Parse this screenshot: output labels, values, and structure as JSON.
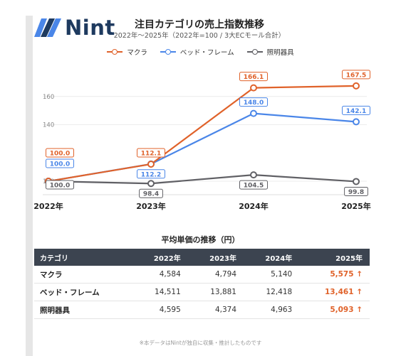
{
  "brand": {
    "name": "Nint"
  },
  "chart_data": {
    "type": "line",
    "title": "注目カテゴリの売上指数推移",
    "subtitle": "2022年～2025年（2022年=100 / 3大ECモール合計）",
    "categories": [
      "2022年",
      "2023年",
      "2024年",
      "2025年"
    ],
    "yticks": [
      100,
      140,
      160
    ],
    "ylim": [
      96,
      180
    ],
    "series": [
      {
        "name": "マクラ",
        "color": "#e0622a",
        "values": [
          100.0,
          112.1,
          166.1,
          167.5
        ],
        "labels": [
          "100.0",
          "112.1",
          "166.1",
          "167.5"
        ],
        "label_pos": [
          "above",
          "above",
          "above",
          "above"
        ]
      },
      {
        "name": "ベッド・フレーム",
        "color": "#4a86e8",
        "values": [
          100.0,
          112.2,
          148.0,
          142.1
        ],
        "labels": [
          "100.0",
          "112.2",
          "148.0",
          "142.1"
        ],
        "label_pos": [
          "above",
          "below",
          "above",
          "above"
        ]
      },
      {
        "name": "照明器具",
        "color": "#606065",
        "values": [
          100.0,
          98.4,
          104.5,
          99.8
        ],
        "labels": [
          "100.0",
          "98.4",
          "104.5",
          "99.8"
        ],
        "label_pos": [
          "below",
          "below",
          "below",
          "below"
        ]
      }
    ],
    "grid": true,
    "legend": "top-center"
  },
  "table": {
    "title": "平均単価の推移（円）",
    "headers": [
      "カテゴリ",
      "2022年",
      "2023年",
      "2024年",
      "2025年"
    ],
    "rows": [
      {
        "cells": [
          "マクラ",
          "4,584",
          "4,794",
          "5,140",
          "5,575"
        ],
        "trend": "↑"
      },
      {
        "cells": [
          "ベッド・フレーム",
          "14,511",
          "13,881",
          "12,418",
          "13,461"
        ],
        "trend": "↑"
      },
      {
        "cells": [
          "照明器具",
          "4,595",
          "4,374",
          "4,963",
          "5,093"
        ],
        "trend": "↑"
      }
    ]
  },
  "footnote": "※本データはNintが独自に収集・推計したものです"
}
